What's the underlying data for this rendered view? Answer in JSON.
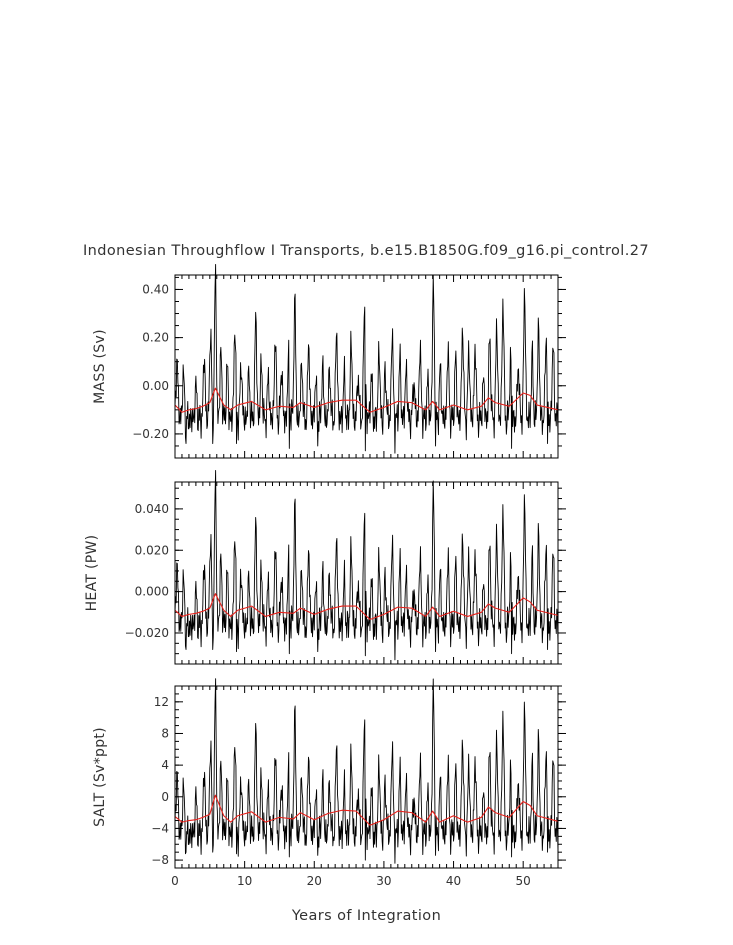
{
  "title": "Indonesian Throughflow I Transports, b.e15.B1850G.f09_g16.pi_control.27",
  "colors": {
    "raw": "#000000",
    "smooth": "#e8201a",
    "frame": "#000000",
    "text": "#333333"
  },
  "chart_data": [
    {
      "type": "line",
      "ylabel": "MASS (Sv)",
      "xlabel": "",
      "xlim": [
        0,
        55
      ],
      "ylim": [
        -0.3,
        0.46
      ],
      "yticks": [
        0.4,
        0.2,
        0.0,
        -0.2
      ],
      "yticklabels": [
        "0.40",
        "0.20",
        "0.00",
        "−0.20"
      ],
      "xticks": [
        0,
        10,
        20,
        30,
        40,
        50
      ],
      "xticklabels": [],
      "baseline": -0.14,
      "amplitude": 0.085,
      "series": [
        {
          "style": "smooth",
          "x": [
            0,
            1,
            2,
            3,
            4,
            5,
            5.8,
            7,
            8,
            9,
            11,
            13,
            15,
            17,
            18,
            20,
            22,
            24,
            26,
            28,
            30,
            32,
            34,
            36,
            37,
            38,
            40,
            42,
            44,
            45,
            46,
            48,
            50,
            51,
            52,
            55
          ],
          "y": [
            -0.08,
            -0.11,
            -0.1,
            -0.095,
            -0.085,
            -0.07,
            -0.01,
            -0.08,
            -0.1,
            -0.08,
            -0.065,
            -0.1,
            -0.085,
            -0.09,
            -0.07,
            -0.09,
            -0.07,
            -0.06,
            -0.06,
            -0.11,
            -0.09,
            -0.065,
            -0.07,
            -0.1,
            -0.065,
            -0.1,
            -0.08,
            -0.1,
            -0.085,
            -0.05,
            -0.07,
            -0.085,
            -0.03,
            -0.04,
            -0.08,
            -0.1
          ]
        },
        {
          "style": "raw",
          "peaks": [
            [
              0.3,
              0.12
            ],
            [
              1.2,
              0.05
            ],
            [
              3.0,
              0.0
            ],
            [
              4.2,
              0.12
            ],
            [
              5.1,
              0.24
            ],
            [
              5.8,
              0.46
            ],
            [
              6.6,
              0.15
            ],
            [
              7.5,
              0.08
            ],
            [
              8.6,
              0.25
            ],
            [
              9.5,
              0.1
            ],
            [
              10.6,
              0.05
            ],
            [
              11.6,
              0.29
            ],
            [
              12.4,
              0.1
            ],
            [
              13.4,
              0.04
            ],
            [
              14.4,
              0.2
            ],
            [
              15.3,
              0.08
            ],
            [
              16.3,
              0.12
            ],
            [
              17.2,
              0.36
            ],
            [
              18.2,
              0.1
            ],
            [
              19.2,
              0.18
            ],
            [
              20.2,
              0.02
            ],
            [
              21.2,
              0.08
            ],
            [
              22.2,
              0.07
            ],
            [
              23.2,
              0.23
            ],
            [
              24.3,
              0.04
            ],
            [
              25.3,
              0.19
            ],
            [
              26.3,
              0.05
            ],
            [
              27.2,
              0.33
            ],
            [
              28.2,
              0.04
            ],
            [
              29.3,
              0.15
            ],
            [
              30.2,
              0.07
            ],
            [
              31.2,
              0.22
            ],
            [
              32.3,
              0.11
            ],
            [
              33.2,
              0.08
            ],
            [
              34.3,
              0.03
            ],
            [
              35.2,
              0.16
            ],
            [
              36.3,
              0.02
            ],
            [
              37.1,
              0.43
            ],
            [
              38.1,
              0.07
            ],
            [
              39.2,
              0.15
            ],
            [
              40.3,
              0.12
            ],
            [
              41.3,
              0.25
            ],
            [
              42.2,
              0.15
            ],
            [
              43.1,
              0.17
            ],
            [
              44.3,
              0.03
            ],
            [
              45.2,
              0.22
            ],
            [
              46.2,
              0.25
            ],
            [
              47.1,
              0.36
            ],
            [
              48.2,
              0.12
            ],
            [
              49.3,
              0.1
            ],
            [
              50.2,
              0.39
            ],
            [
              51.3,
              0.12
            ],
            [
              52.2,
              0.25
            ],
            [
              53.3,
              0.22
            ],
            [
              54.3,
              0.18
            ]
          ],
          "troughs": [
            [
              1.6,
              -0.24
            ],
            [
              5.4,
              -0.24
            ],
            [
              8.8,
              -0.24
            ],
            [
              16.4,
              -0.26
            ],
            [
              20.5,
              -0.25
            ],
            [
              27.3,
              -0.27
            ],
            [
              31.6,
              -0.28
            ],
            [
              37.4,
              -0.25
            ],
            [
              48.3,
              -0.26
            ],
            [
              53.5,
              -0.24
            ]
          ]
        }
      ]
    },
    {
      "type": "line",
      "ylabel": "HEAT (PW)",
      "xlabel": "",
      "xlim": [
        0,
        55
      ],
      "ylim": [
        -0.035,
        0.053
      ],
      "yticks": [
        0.04,
        0.02,
        0.0,
        -0.02
      ],
      "yticklabels": [
        "0.040",
        "0.020",
        "0.000",
        "−0.020"
      ],
      "xticks": [
        0,
        10,
        20,
        30,
        40,
        50
      ],
      "xticklabels": [],
      "baseline": -0.017,
      "amplitude": 0.0105,
      "series": [
        {
          "style": "smooth",
          "x": [
            0,
            1,
            2,
            3,
            4,
            5,
            5.8,
            7,
            8,
            9,
            11,
            13,
            15,
            17,
            18,
            20,
            22,
            24,
            26,
            28,
            30,
            32,
            34,
            36,
            37,
            38,
            40,
            42,
            44,
            45,
            46,
            48,
            50,
            51,
            52,
            55
          ],
          "y": [
            -0.009,
            -0.012,
            -0.011,
            -0.0105,
            -0.0095,
            -0.008,
            -0.001,
            -0.009,
            -0.012,
            -0.009,
            -0.007,
            -0.012,
            -0.01,
            -0.0105,
            -0.008,
            -0.011,
            -0.0085,
            -0.007,
            -0.007,
            -0.0135,
            -0.011,
            -0.0075,
            -0.008,
            -0.012,
            -0.0075,
            -0.012,
            -0.0095,
            -0.012,
            -0.01,
            -0.006,
            -0.008,
            -0.01,
            -0.003,
            -0.005,
            -0.009,
            -0.0115
          ]
        },
        {
          "style": "raw",
          "peaks": [
            [
              0.3,
              0.015
            ],
            [
              1.2,
              0.006
            ],
            [
              3.0,
              0.0
            ],
            [
              4.2,
              0.014
            ],
            [
              5.1,
              0.028
            ],
            [
              5.8,
              0.053
            ],
            [
              6.6,
              0.017
            ],
            [
              7.5,
              0.009
            ],
            [
              8.6,
              0.029
            ],
            [
              9.5,
              0.011
            ],
            [
              10.6,
              0.006
            ],
            [
              11.6,
              0.034
            ],
            [
              12.4,
              0.011
            ],
            [
              13.4,
              0.005
            ],
            [
              14.4,
              0.023
            ],
            [
              15.3,
              0.009
            ],
            [
              16.3,
              0.014
            ],
            [
              17.2,
              0.042
            ],
            [
              18.2,
              0.011
            ],
            [
              19.2,
              0.021
            ],
            [
              20.2,
              0.002
            ],
            [
              21.2,
              0.009
            ],
            [
              22.2,
              0.008
            ],
            [
              23.2,
              0.027
            ],
            [
              24.3,
              0.005
            ],
            [
              25.3,
              0.022
            ],
            [
              26.3,
              0.006
            ],
            [
              27.2,
              0.038
            ],
            [
              28.2,
              0.005
            ],
            [
              29.3,
              0.017
            ],
            [
              30.2,
              0.008
            ],
            [
              31.2,
              0.025
            ],
            [
              32.3,
              0.013
            ],
            [
              33.2,
              0.009
            ],
            [
              34.3,
              0.003
            ],
            [
              35.2,
              0.018
            ],
            [
              36.3,
              0.002
            ],
            [
              37.1,
              0.05
            ],
            [
              38.1,
              0.008
            ],
            [
              39.2,
              0.017
            ],
            [
              40.3,
              0.014
            ],
            [
              41.3,
              0.029
            ],
            [
              42.2,
              0.017
            ],
            [
              43.1,
              0.02
            ],
            [
              44.3,
              0.003
            ],
            [
              45.2,
              0.025
            ],
            [
              46.2,
              0.029
            ],
            [
              47.1,
              0.042
            ],
            [
              48.2,
              0.014
            ],
            [
              49.3,
              0.011
            ],
            [
              50.2,
              0.045
            ],
            [
              51.3,
              0.014
            ],
            [
              52.2,
              0.029
            ],
            [
              53.3,
              0.025
            ],
            [
              54.3,
              0.021
            ]
          ],
          "troughs": [
            [
              1.6,
              -0.028
            ],
            [
              5.4,
              -0.028
            ],
            [
              8.8,
              -0.029
            ],
            [
              16.4,
              -0.03
            ],
            [
              20.5,
              -0.029
            ],
            [
              27.3,
              -0.031
            ],
            [
              31.6,
              -0.033
            ],
            [
              37.4,
              -0.029
            ],
            [
              48.3,
              -0.03
            ],
            [
              53.5,
              -0.028
            ]
          ]
        }
      ]
    },
    {
      "type": "line",
      "ylabel": "SALT (Sv*ppt)",
      "xlabel": "Years of Integration",
      "xlim": [
        0,
        55
      ],
      "ylim": [
        -9,
        14
      ],
      "yticks": [
        12,
        8,
        4,
        0,
        -4,
        -8
      ],
      "yticklabels": [
        "12",
        "8",
        "4",
        "0",
        "−4",
        "−8"
      ],
      "xticks": [
        0,
        10,
        20,
        30,
        40,
        50
      ],
      "xticklabels": [
        "0",
        "10",
        "20",
        "30",
        "40",
        "50"
      ],
      "baseline": -4.8,
      "amplitude": 2.7,
      "series": [
        {
          "style": "smooth",
          "x": [
            0,
            1,
            2,
            3,
            4,
            5,
            5.8,
            7,
            8,
            9,
            11,
            13,
            15,
            17,
            18,
            20,
            22,
            24,
            26,
            28,
            30,
            32,
            34,
            36,
            37,
            38,
            40,
            42,
            44,
            45,
            46,
            48,
            50,
            51,
            52,
            55
          ],
          "y": [
            -2.5,
            -3.2,
            -3.0,
            -2.9,
            -2.6,
            -2.2,
            0.2,
            -2.4,
            -3.2,
            -2.4,
            -1.9,
            -3.2,
            -2.6,
            -2.8,
            -2.0,
            -2.9,
            -2.1,
            -1.7,
            -1.8,
            -3.6,
            -2.9,
            -1.8,
            -2.0,
            -3.2,
            -1.8,
            -3.2,
            -2.4,
            -3.2,
            -2.6,
            -1.3,
            -2.0,
            -2.6,
            -0.6,
            -1.1,
            -2.4,
            -3.1
          ]
        },
        {
          "style": "raw",
          "peaks": [
            [
              0.3,
              3.5
            ],
            [
              1.2,
              1.2
            ],
            [
              3.0,
              0.0
            ],
            [
              4.2,
              3.4
            ],
            [
              5.1,
              7.2
            ],
            [
              5.8,
              13.5
            ],
            [
              6.6,
              4.2
            ],
            [
              7.5,
              2.0
            ],
            [
              8.6,
              7.5
            ],
            [
              9.5,
              2.6
            ],
            [
              10.6,
              1.2
            ],
            [
              11.6,
              8.8
            ],
            [
              12.4,
              2.6
            ],
            [
              13.4,
              1.0
            ],
            [
              14.4,
              5.8
            ],
            [
              15.3,
              2.0
            ],
            [
              16.3,
              3.4
            ],
            [
              17.2,
              10.8
            ],
            [
              18.2,
              2.6
            ],
            [
              19.2,
              5.3
            ],
            [
              20.2,
              0.2
            ],
            [
              21.2,
              2.0
            ],
            [
              22.2,
              1.8
            ],
            [
              23.2,
              6.8
            ],
            [
              24.3,
              0.8
            ],
            [
              25.3,
              5.5
            ],
            [
              26.3,
              1.2
            ],
            [
              27.2,
              9.8
            ],
            [
              28.2,
              0.8
            ],
            [
              29.3,
              4.2
            ],
            [
              30.2,
              1.8
            ],
            [
              31.2,
              6.4
            ],
            [
              32.3,
              3.0
            ],
            [
              33.2,
              2.0
            ],
            [
              34.3,
              0.4
            ],
            [
              35.2,
              4.6
            ],
            [
              36.3,
              0.2
            ],
            [
              37.1,
              14.0
            ],
            [
              38.1,
              1.8
            ],
            [
              39.2,
              4.2
            ],
            [
              40.3,
              3.4
            ],
            [
              41.3,
              7.5
            ],
            [
              42.2,
              4.2
            ],
            [
              43.1,
              5.0
            ],
            [
              44.3,
              0.4
            ],
            [
              45.2,
              6.4
            ],
            [
              46.2,
              7.5
            ],
            [
              47.1,
              10.8
            ],
            [
              48.2,
              3.4
            ],
            [
              49.3,
              2.6
            ],
            [
              50.2,
              11.5
            ],
            [
              51.3,
              3.4
            ],
            [
              52.2,
              7.5
            ],
            [
              53.3,
              6.4
            ],
            [
              54.3,
              5.3
            ]
          ],
          "troughs": [
            [
              1.6,
              -7.0
            ],
            [
              5.4,
              -7.0
            ],
            [
              8.8,
              -7.2
            ],
            [
              16.4,
              -7.6
            ],
            [
              20.5,
              -7.4
            ],
            [
              27.3,
              -8.0
            ],
            [
              31.6,
              -8.4
            ],
            [
              37.4,
              -7.4
            ],
            [
              48.3,
              -7.6
            ],
            [
              53.5,
              -7.0
            ]
          ]
        }
      ]
    }
  ]
}
